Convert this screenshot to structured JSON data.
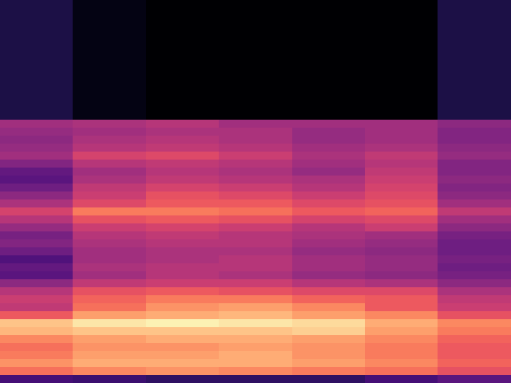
{
  "chart_data": {
    "type": "heatmap",
    "color": "magma",
    "tick_labels": false,
    "zlim": [
      -80,
      0
    ],
    "cells": [
      [
        -70,
        -77,
        -80,
        -80,
        -80,
        -80,
        -70
      ],
      [
        -70,
        -77,
        -80,
        -80,
        -80,
        -80,
        -70
      ],
      [
        -70,
        -77,
        -80,
        -80,
        -80,
        -80,
        -70
      ],
      [
        -70,
        -77,
        -80,
        -80,
        -80,
        -80,
        -70
      ],
      [
        -70,
        -77,
        -80,
        -80,
        -80,
        -80,
        -70
      ],
      [
        -70,
        -77,
        -80,
        -80,
        -80,
        -80,
        -70
      ],
      [
        -70,
        -77,
        -80,
        -80,
        -80,
        -80,
        -70
      ],
      [
        -70,
        -77,
        -80,
        -80,
        -80,
        -80,
        -70
      ],
      [
        -70,
        -77,
        -80,
        -80,
        -80,
        -80,
        -70
      ],
      [
        -70,
        -77,
        -80,
        -80,
        -80,
        -80,
        -70
      ],
      [
        -70,
        -77,
        -80,
        -80,
        -80,
        -80,
        -70
      ],
      [
        -70,
        -77,
        -80,
        -80,
        -80,
        -80,
        -70
      ],
      [
        -70,
        -77,
        -80,
        -80,
        -80,
        -80,
        -70
      ],
      [
        -70,
        -77,
        -80,
        -80,
        -80,
        -80,
        -70
      ],
      [
        -70,
        -77,
        -80,
        -80,
        -80,
        -80,
        -70
      ],
      [
        -44,
        -42,
        -40,
        -44,
        -44,
        -44,
        -48
      ],
      [
        -46,
        -44,
        -42,
        -42,
        -46,
        -44,
        -50
      ],
      [
        -48,
        -42,
        -40,
        -42,
        -46,
        -44,
        -50
      ],
      [
        -46,
        -40,
        -38,
        -40,
        -44,
        -42,
        -48
      ],
      [
        -44,
        -34,
        -32,
        -36,
        -42,
        -38,
        -46
      ],
      [
        -50,
        -40,
        -38,
        -40,
        -44,
        -40,
        -50
      ],
      [
        -56,
        -44,
        -40,
        -42,
        -46,
        -38,
        -50
      ],
      [
        -58,
        -42,
        -38,
        -40,
        -42,
        -36,
        -48
      ],
      [
        -54,
        -38,
        -34,
        -36,
        -40,
        -34,
        -50
      ],
      [
        -48,
        -36,
        -30,
        -32,
        -36,
        -32,
        -48
      ],
      [
        -42,
        -32,
        -28,
        -28,
        -32,
        -30,
        -44
      ],
      [
        -34,
        -22,
        -22,
        -24,
        -28,
        -26,
        -38
      ],
      [
        -40,
        -30,
        -28,
        -30,
        -34,
        -32,
        -44
      ],
      [
        -46,
        -36,
        -34,
        -36,
        -40,
        -36,
        -48
      ],
      [
        -52,
        -40,
        -38,
        -40,
        -42,
        -44,
        -52
      ],
      [
        -50,
        -42,
        -40,
        -40,
        -44,
        -46,
        -54
      ],
      [
        -54,
        -44,
        -42,
        -42,
        -46,
        -48,
        -54
      ],
      [
        -60,
        -44,
        -42,
        -40,
        -44,
        -46,
        -52
      ],
      [
        -56,
        -42,
        -40,
        -40,
        -44,
        -46,
        -54
      ],
      [
        -58,
        -44,
        -40,
        -42,
        -46,
        -48,
        -52
      ],
      [
        -48,
        -38,
        -36,
        -36,
        -40,
        -42,
        -48
      ],
      [
        -40,
        -30,
        -28,
        -30,
        -32,
        -32,
        -42
      ],
      [
        -36,
        -26,
        -22,
        -22,
        -26,
        -28,
        -38
      ],
      [
        -38,
        -24,
        -18,
        -16,
        -20,
        -28,
        -36
      ],
      [
        -28,
        -16,
        -14,
        -12,
        -16,
        -20,
        -30
      ],
      [
        -10,
        -4,
        -2,
        -4,
        -6,
        -14,
        -20
      ],
      [
        -12,
        -10,
        -10,
        -10,
        -8,
        -16,
        -22
      ],
      [
        -20,
        -16,
        -14,
        -14,
        -16,
        -20,
        -26
      ],
      [
        -24,
        -18,
        -18,
        -16,
        -18,
        -22,
        -28
      ],
      [
        -22,
        -16,
        -16,
        -14,
        -18,
        -22,
        -28
      ],
      [
        -18,
        -14,
        -14,
        -14,
        -16,
        -20,
        -26
      ],
      [
        -24,
        -20,
        -18,
        -20,
        -22,
        -24,
        -30
      ],
      [
        -62,
        -64,
        -66,
        -66,
        -66,
        -62,
        -58
      ]
    ]
  }
}
